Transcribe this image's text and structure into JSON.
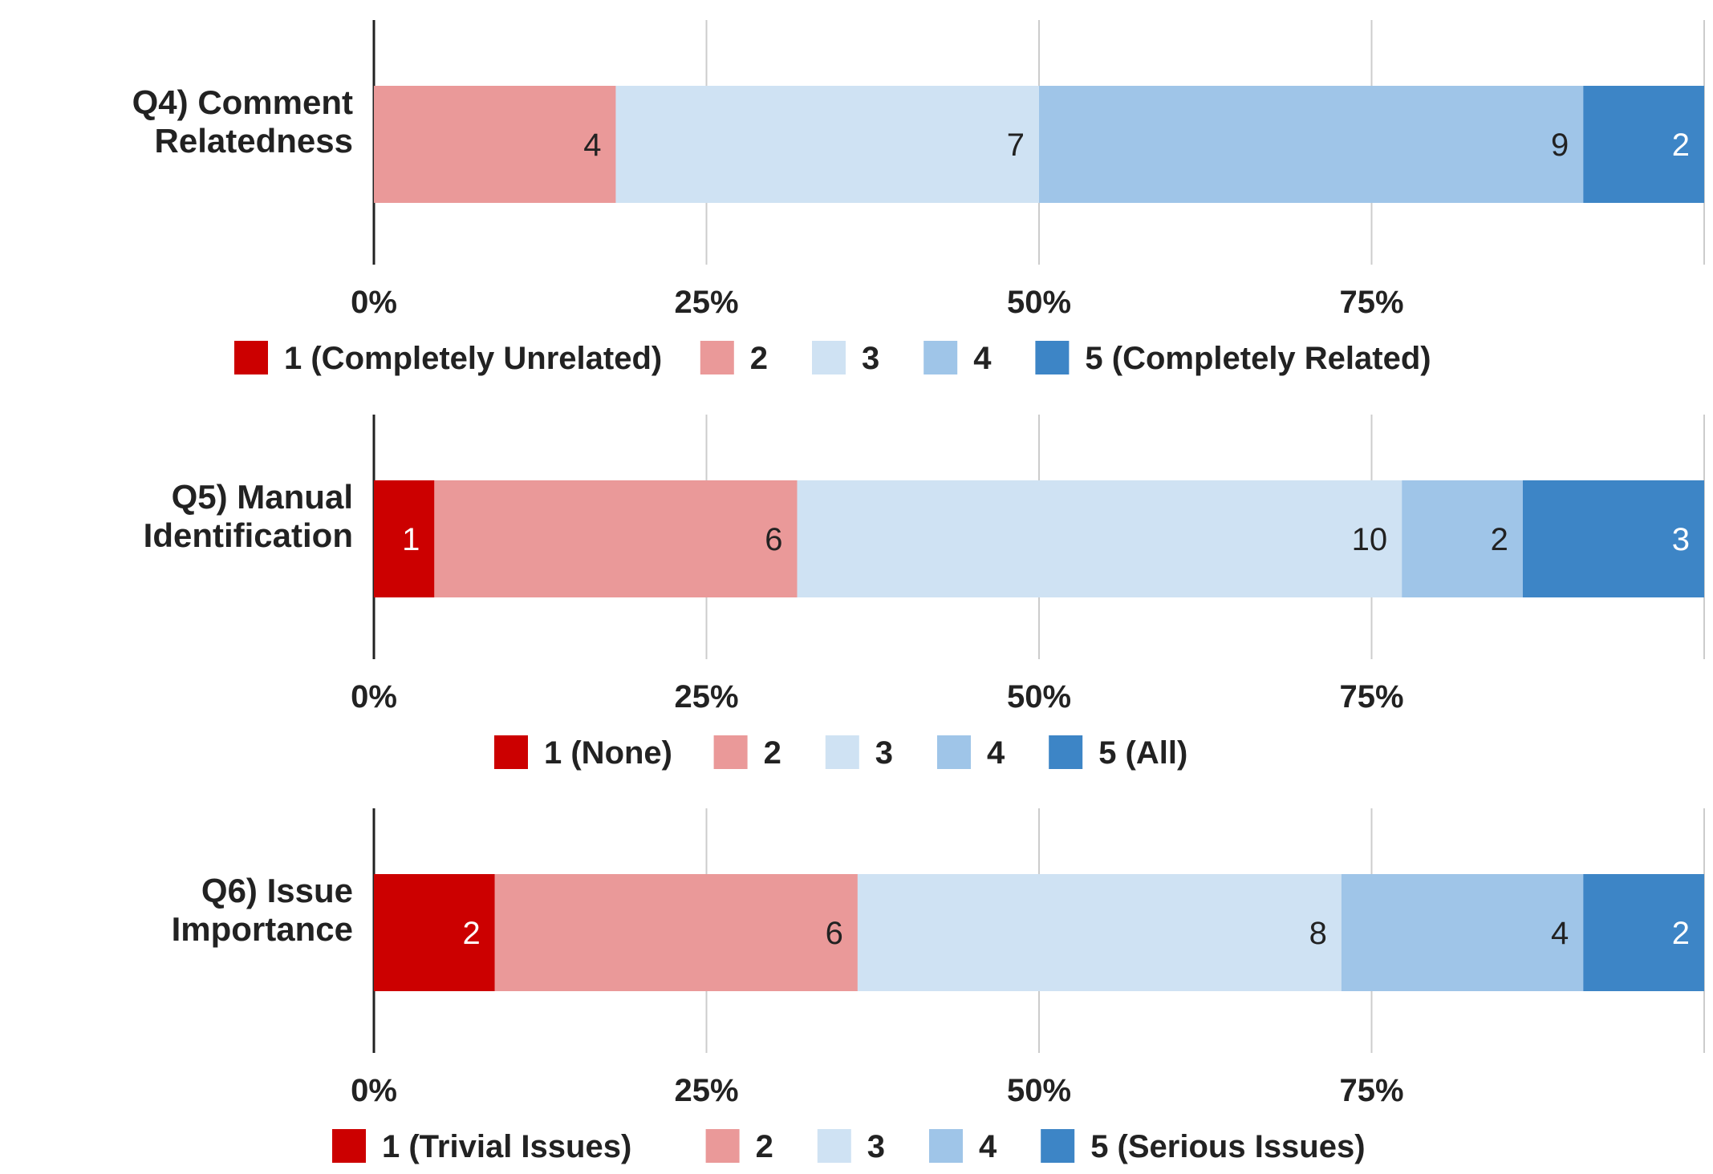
{
  "chart_data": [
    {
      "type": "bar",
      "orientation": "horizontal",
      "stacked": "percent",
      "categories": [
        "Q4) Comment Relatedness"
      ],
      "series": [
        {
          "name": "1 (Completely Unrelated)",
          "values": [
            0
          ]
        },
        {
          "name": "2",
          "values": [
            4
          ]
        },
        {
          "name": "3",
          "values": [
            7
          ]
        },
        {
          "name": "4",
          "values": [
            9
          ]
        },
        {
          "name": "5 (Completely Related)",
          "values": [
            2
          ]
        }
      ],
      "xaxis": {
        "ticks": [
          "0%",
          "25%",
          "50%",
          "75%"
        ],
        "range": [
          0,
          100
        ]
      },
      "grid": true,
      "legend": "bottom"
    },
    {
      "type": "bar",
      "orientation": "horizontal",
      "stacked": "percent",
      "categories": [
        "Q5) Manual Identification"
      ],
      "series": [
        {
          "name": "1 (None)",
          "values": [
            1
          ]
        },
        {
          "name": "2",
          "values": [
            6
          ]
        },
        {
          "name": "3",
          "values": [
            10
          ]
        },
        {
          "name": "4",
          "values": [
            2
          ]
        },
        {
          "name": "5 (All)",
          "values": [
            3
          ]
        }
      ],
      "xaxis": {
        "ticks": [
          "0%",
          "25%",
          "50%",
          "75%"
        ],
        "range": [
          0,
          100
        ]
      },
      "grid": true,
      "legend": "bottom"
    },
    {
      "type": "bar",
      "orientation": "horizontal",
      "stacked": "percent",
      "categories": [
        "Q6) Issue Importance"
      ],
      "series": [
        {
          "name": "1 (Trivial Issues)",
          "values": [
            2
          ]
        },
        {
          "name": "2",
          "values": [
            6
          ]
        },
        {
          "name": "3",
          "values": [
            8
          ]
        },
        {
          "name": "4",
          "values": [
            4
          ]
        },
        {
          "name": "5 (Serious Issues)",
          "values": [
            2
          ]
        }
      ],
      "xaxis": {
        "ticks": [
          "0%",
          "25%",
          "50%",
          "75%"
        ],
        "range": [
          0,
          100
        ]
      },
      "grid": true,
      "legend": "bottom"
    }
  ],
  "colors": {
    "series": [
      "#cc0000",
      "#ea9999",
      "#cfe2f3",
      "#9fc5e8",
      "#3d85c6"
    ],
    "value_label_light": "#ffffff",
    "value_label_dark": "#222222",
    "gridline": "#cccccc",
    "axis": "#222222"
  }
}
